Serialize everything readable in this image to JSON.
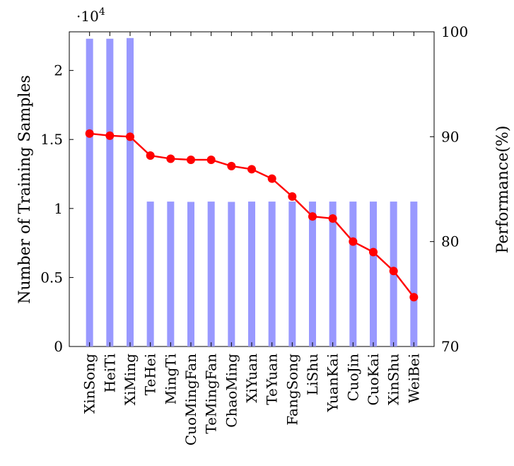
{
  "chart_data": {
    "type": "bar+line",
    "categories": [
      "XinSong",
      "HeiTi",
      "XiMing",
      "TeHei",
      "MingTi",
      "CuoMingFan",
      "TeMingFan",
      "ChaoMing",
      "XiYuan",
      "TeYuan",
      "FangSong",
      "LiShu",
      "YuanKai",
      "CuoJin",
      "CuoKai",
      "XinShu",
      "WeiBei"
    ],
    "bar_series": {
      "axis": "left",
      "color": "#9999ff",
      "values": [
        22300,
        22300,
        22350,
        10500,
        10500,
        10480,
        10500,
        10480,
        10500,
        10500,
        10500,
        10500,
        10500,
        10500,
        10500,
        10500,
        10500
      ]
    },
    "line_series": {
      "axis": "right",
      "color": "#ff0000",
      "values": [
        90.3,
        90.1,
        90.0,
        88.2,
        87.9,
        87.8,
        87.8,
        87.2,
        86.9,
        86.0,
        84.3,
        82.4,
        82.2,
        80.0,
        79.0,
        77.2,
        74.7
      ]
    },
    "left_axis": {
      "label": "Number of Training Samples",
      "scale_label_base": "·10",
      "scale_label_exp": "4",
      "ylim": [
        0,
        22800
      ],
      "ticks": [
        0,
        5000,
        10000,
        15000,
        20000
      ],
      "tick_labels": [
        "0",
        "0.5",
        "1",
        "1.5",
        "2"
      ]
    },
    "right_axis": {
      "label": "Performance(%)",
      "ylim": [
        70,
        100
      ],
      "ticks": [
        70,
        80,
        90,
        100
      ],
      "tick_labels": [
        "70",
        "80",
        "90",
        "100"
      ]
    },
    "grid": false,
    "legend": "none"
  }
}
